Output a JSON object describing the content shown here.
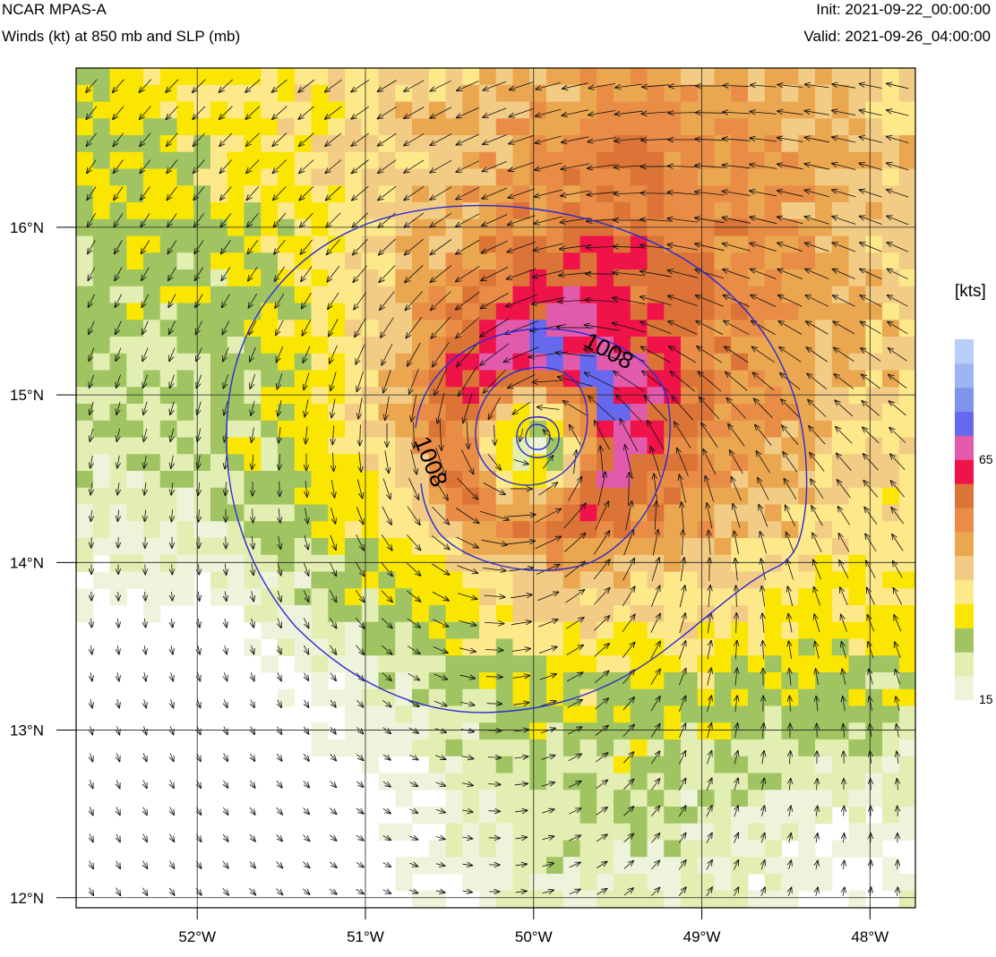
{
  "header": {
    "title": "NCAR MPAS-A",
    "subtitle": "Winds (kt) at 850 mb and SLP (mb)",
    "init": "Init: 2021-09-22_00:00:00",
    "valid": "Valid: 2021-09-26_04:00:00"
  },
  "map": {
    "lon_range": [
      -52.72,
      -47.73
    ],
    "lat_range": [
      11.94,
      16.95
    ],
    "x_axis": {
      "ticks": [
        -52,
        -51,
        -50,
        -49,
        -48
      ],
      "labels": [
        "52°W",
        "51°W",
        "50°W",
        "49°W",
        "48°W"
      ]
    },
    "y_axis": {
      "ticks": [
        12,
        13,
        14,
        15,
        16
      ],
      "labels": [
        "12°N",
        "13°N",
        "14°N",
        "15°N",
        "16°N"
      ]
    },
    "grid": true,
    "storm_center": {
      "lon": -50.0,
      "lat": 14.72
    }
  },
  "colorbar": {
    "units_label": "[kts]",
    "tick_labels": [
      "65",
      "15"
    ],
    "min": 15,
    "max": 90,
    "step": 5,
    "colors": [
      "#eef4dc",
      "#e2eeb2",
      "#a0c462",
      "#fae600",
      "#fde88a",
      "#f2cc84",
      "#eba650",
      "#e98d46",
      "#db7436",
      "#ef1349",
      "#e25aac",
      "#6668ee",
      "#7f94ec",
      "#9db5f2",
      "#b7cff9"
    ]
  },
  "contours": {
    "units": "mb",
    "labels": [
      "1008",
      "1008"
    ],
    "color": "#2b2bd0"
  }
}
